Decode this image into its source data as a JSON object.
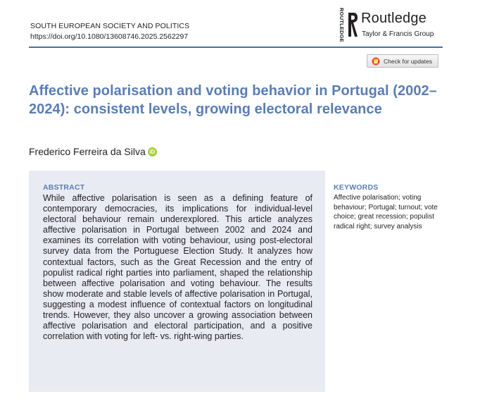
{
  "journal": {
    "name": "SOUTH EUROPEAN SOCIETY AND POLITICS",
    "doi": "https://doi.org/10.1080/13608746.2025.2562297"
  },
  "publisher": {
    "vertical_text": "ROUTLEDGE",
    "name": "Routledge",
    "subtitle": "Taylor & Francis Group",
    "logo_icon": "routledge-r-icon"
  },
  "check_updates": {
    "label": "Check for updates",
    "icon": "crossmark-icon"
  },
  "article": {
    "title": "Affective polarisation and voting behavior in Portugal (2002–2024): consistent levels, growing electoral relevance",
    "author": "Frederico Ferreira da Silva",
    "orcid_icon": "orcid-icon"
  },
  "abstract": {
    "heading": "ABSTRACT",
    "text": "While affective polarisation is seen as a defining feature of contemporary democracies, its implications for individual-level electoral behaviour remain underexplored. This article analyzes affective polarisation in Portugal between 2002 and 2024 and examines its correlation with voting behaviour, using post-electoral survey data from the Portuguese Election Study. It analyzes how contextual factors, such as the Great Recession and the entry of populist radical right parties into parliament, shaped the relationship between affective polarisation and voting behaviour. The results show moderate and stable levels of affective polarisation in Portugal, suggesting a modest influence of contextual factors on longitudinal trends. However, they also uncover a growing association between affective polarisation and electoral participation, and a positive correlation with voting for left- vs. right-wing parties."
  },
  "keywords": {
    "heading": "KEYWORDS",
    "text": "Affective polarisation; voting behaviour; Portugal; turnout; vote choice; great recession; populist radical right; survey analysis"
  },
  "colors": {
    "title_blue": "#5a7db3",
    "rule_blue": "#4a6fa5",
    "abstract_bg": "#e9ebf3",
    "orcid_green": "#a6ce39"
  }
}
